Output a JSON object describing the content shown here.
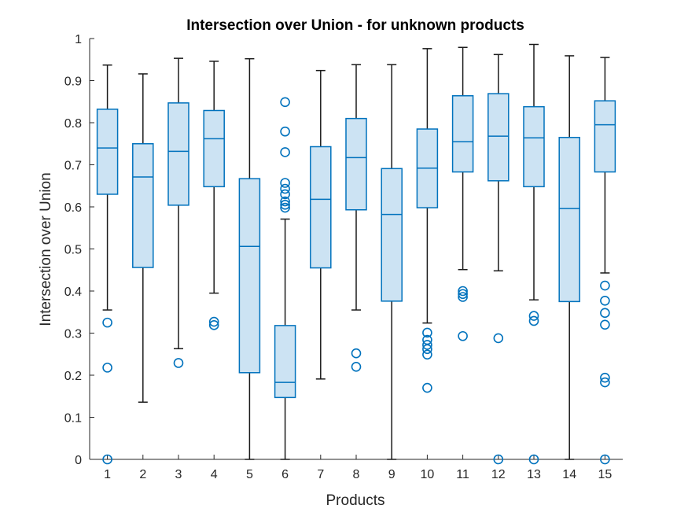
{
  "chart_data": {
    "type": "boxplot",
    "title": "Intersection over Union -  for unknown products",
    "xlabel": "Products",
    "ylabel": "Intersection over Union",
    "ylim": [
      0,
      1
    ],
    "yticks": [
      "0",
      "0.1",
      "0.2",
      "0.3",
      "0.4",
      "0.5",
      "0.6",
      "0.7",
      "0.8",
      "0.9",
      "1"
    ],
    "categories": [
      "1",
      "2",
      "3",
      "4",
      "5",
      "6",
      "7",
      "8",
      "9",
      "10",
      "11",
      "12",
      "13",
      "14",
      "15"
    ],
    "grid": false,
    "colors": {
      "box_stroke": "#0072BD",
      "box_fill": "#CCE3F3",
      "whisker": "#1a1a1a",
      "axis": "#262626"
    },
    "boxes": [
      {
        "category": "1",
        "min": 0.355,
        "q1": 0.63,
        "median": 0.74,
        "q3": 0.832,
        "max": 0.937,
        "outliers": [
          0.325,
          0.218,
          0.0
        ]
      },
      {
        "category": "2",
        "min": 0.136,
        "q1": 0.456,
        "median": 0.671,
        "q3": 0.75,
        "max": 0.916,
        "outliers": []
      },
      {
        "category": "3",
        "min": 0.263,
        "q1": 0.604,
        "median": 0.732,
        "q3": 0.847,
        "max": 0.953,
        "outliers": [
          0.229
        ]
      },
      {
        "category": "4",
        "min": 0.395,
        "q1": 0.648,
        "median": 0.762,
        "q3": 0.829,
        "max": 0.946,
        "outliers": [
          0.327,
          0.319
        ]
      },
      {
        "category": "5",
        "min": 0.0,
        "q1": 0.206,
        "median": 0.506,
        "q3": 0.667,
        "max": 0.952,
        "outliers": []
      },
      {
        "category": "6",
        "min": 0.0,
        "q1": 0.147,
        "median": 0.183,
        "q3": 0.318,
        "max": 0.571,
        "outliers": [
          0.849,
          0.779,
          0.73,
          0.657,
          0.643,
          0.63,
          0.613,
          0.605,
          0.598
        ]
      },
      {
        "category": "7",
        "min": 0.191,
        "q1": 0.455,
        "median": 0.618,
        "q3": 0.743,
        "max": 0.924,
        "outliers": []
      },
      {
        "category": "8",
        "min": 0.355,
        "q1": 0.593,
        "median": 0.717,
        "q3": 0.81,
        "max": 0.938,
        "outliers": [
          0.252,
          0.22
        ]
      },
      {
        "category": "9",
        "min": 0.0,
        "q1": 0.376,
        "median": 0.582,
        "q3": 0.691,
        "max": 0.938,
        "outliers": []
      },
      {
        "category": "10",
        "min": 0.324,
        "q1": 0.598,
        "median": 0.692,
        "q3": 0.785,
        "max": 0.976,
        "outliers": [
          0.301,
          0.284,
          0.272,
          0.262,
          0.249,
          0.17
        ]
      },
      {
        "category": "11",
        "min": 0.451,
        "q1": 0.683,
        "median": 0.755,
        "q3": 0.864,
        "max": 0.979,
        "outliers": [
          0.4,
          0.393,
          0.386,
          0.293
        ]
      },
      {
        "category": "12",
        "min": 0.448,
        "q1": 0.662,
        "median": 0.768,
        "q3": 0.869,
        "max": 0.962,
        "outliers": [
          0.288,
          0.0
        ]
      },
      {
        "category": "13",
        "min": 0.379,
        "q1": 0.648,
        "median": 0.764,
        "q3": 0.838,
        "max": 0.986,
        "outliers": [
          0.341,
          0.329,
          0.0
        ]
      },
      {
        "category": "14",
        "min": 0.0,
        "q1": 0.375,
        "median": 0.596,
        "q3": 0.765,
        "max": 0.959,
        "outliers": []
      },
      {
        "category": "15",
        "min": 0.443,
        "q1": 0.683,
        "median": 0.795,
        "q3": 0.852,
        "max": 0.955,
        "outliers": [
          0.413,
          0.377,
          0.348,
          0.32,
          0.194,
          0.183,
          0.0
        ]
      }
    ]
  }
}
